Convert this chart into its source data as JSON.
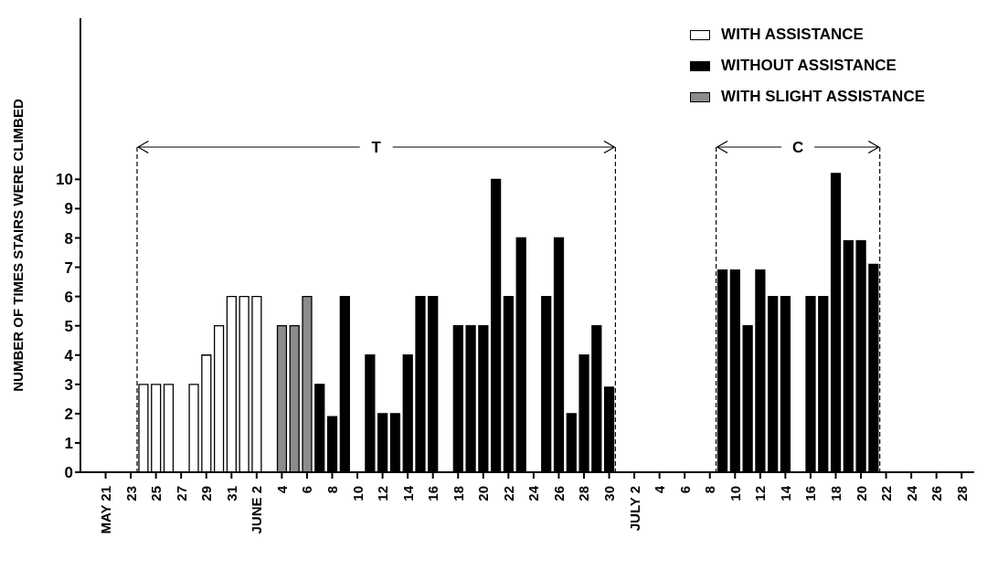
{
  "chart_data": {
    "type": "bar",
    "ylabel": "NUMBER OF TIMES STAIRS WERE CLIMBED",
    "xlim": [
      "--05-19",
      "--07-29"
    ],
    "xticks": [
      {
        "value": "--05-21",
        "label": "MAY 21"
      },
      {
        "value": "--05-23",
        "label": "23"
      },
      {
        "value": "--05-25",
        "label": "25"
      },
      {
        "value": "--05-27",
        "label": "27"
      },
      {
        "value": "--05-29",
        "label": "29"
      },
      {
        "value": "--05-31",
        "label": "31"
      },
      {
        "value": "--06-02",
        "label": "JUNE 2"
      },
      {
        "value": "--06-04",
        "label": "4"
      },
      {
        "value": "--06-06",
        "label": "6"
      },
      {
        "value": "--06-08",
        "label": "8"
      },
      {
        "value": "--06-10",
        "label": "10"
      },
      {
        "value": "--06-12",
        "label": "12"
      },
      {
        "value": "--06-14",
        "label": "14"
      },
      {
        "value": "--06-16",
        "label": "16"
      },
      {
        "value": "--06-18",
        "label": "18"
      },
      {
        "value": "--06-20",
        "label": "20"
      },
      {
        "value": "--06-22",
        "label": "22"
      },
      {
        "value": "--06-24",
        "label": "24"
      },
      {
        "value": "--06-26",
        "label": "26"
      },
      {
        "value": "--06-28",
        "label": "28"
      },
      {
        "value": "--06-30",
        "label": "30"
      },
      {
        "value": "--07-02",
        "label": "JULY 2"
      },
      {
        "value": "--07-04",
        "label": "4"
      },
      {
        "value": "--07-06",
        "label": "6"
      },
      {
        "value": "--07-08",
        "label": "8"
      },
      {
        "value": "--07-10",
        "label": "10"
      },
      {
        "value": "--07-12",
        "label": "12"
      },
      {
        "value": "--07-14",
        "label": "14"
      },
      {
        "value": "--07-16",
        "label": "16"
      },
      {
        "value": "--07-18",
        "label": "18"
      },
      {
        "value": "--07-20",
        "label": "20"
      },
      {
        "value": "--07-22",
        "label": "22"
      },
      {
        "value": "--07-24",
        "label": "24"
      },
      {
        "value": "--07-26",
        "label": "26"
      },
      {
        "value": "--07-28",
        "label": "28"
      }
    ],
    "ylim": [
      0,
      15.5
    ],
    "yticks": [
      0,
      1,
      2,
      3,
      4,
      5,
      6,
      7,
      8,
      9,
      10
    ],
    "series": [
      {
        "name": "WITH ASSISTANCE",
        "color": "#ffffff",
        "x": [
          "--05-24",
          "--05-25",
          "--05-26",
          "--05-28",
          "--05-29",
          "--05-30",
          "--05-31",
          "--06-01",
          "--06-02"
        ],
        "values": [
          3,
          3,
          3,
          3,
          4,
          5,
          6,
          6,
          6
        ]
      },
      {
        "name": "WITHOUT ASSISTANCE",
        "color": "#000000",
        "x": [
          "--06-07",
          "--06-08",
          "--06-09",
          "--06-11",
          "--06-12",
          "--06-13",
          "--06-14",
          "--06-15",
          "--06-16",
          "--06-18",
          "--06-19",
          "--06-20",
          "--06-21",
          "--06-22",
          "--06-23",
          "--06-25",
          "--06-26",
          "--06-27",
          "--06-28",
          "--06-29",
          "--06-30",
          "--07-09",
          "--07-10",
          "--07-11",
          "--07-12",
          "--07-13",
          "--07-14",
          "--07-16",
          "--07-17",
          "--07-18",
          "--07-19",
          "--07-20",
          "--07-21"
        ],
        "values": [
          3,
          1.9,
          6,
          4,
          2,
          2,
          4,
          6,
          6,
          5,
          5,
          5,
          10,
          6,
          8,
          6,
          8,
          2,
          4,
          5,
          2.9,
          6.9,
          6.9,
          5,
          6.9,
          6,
          6,
          6,
          6,
          10.2,
          7.9,
          7.9,
          7.1
        ]
      },
      {
        "name": "WITH SLIGHT ASSISTANCE",
        "color": "#8c8c8c",
        "x": [
          "--06-04",
          "--06-05",
          "--06-06"
        ],
        "values": [
          5,
          5,
          6
        ]
      }
    ],
    "ref_lines": [
      {
        "axis": "x",
        "value": "--05-23T12:00",
        "line_style": "dashed"
      },
      {
        "axis": "x",
        "value": "--06-30T12:00",
        "line_style": "dashed"
      },
      {
        "axis": "x",
        "value": "--07-08T12:00",
        "line_style": "dashed"
      },
      {
        "axis": "x",
        "value": "--07-21T12:00",
        "line_style": "dashed"
      }
    ],
    "annotations": [
      "T",
      "C"
    ],
    "legend": "top right"
  }
}
